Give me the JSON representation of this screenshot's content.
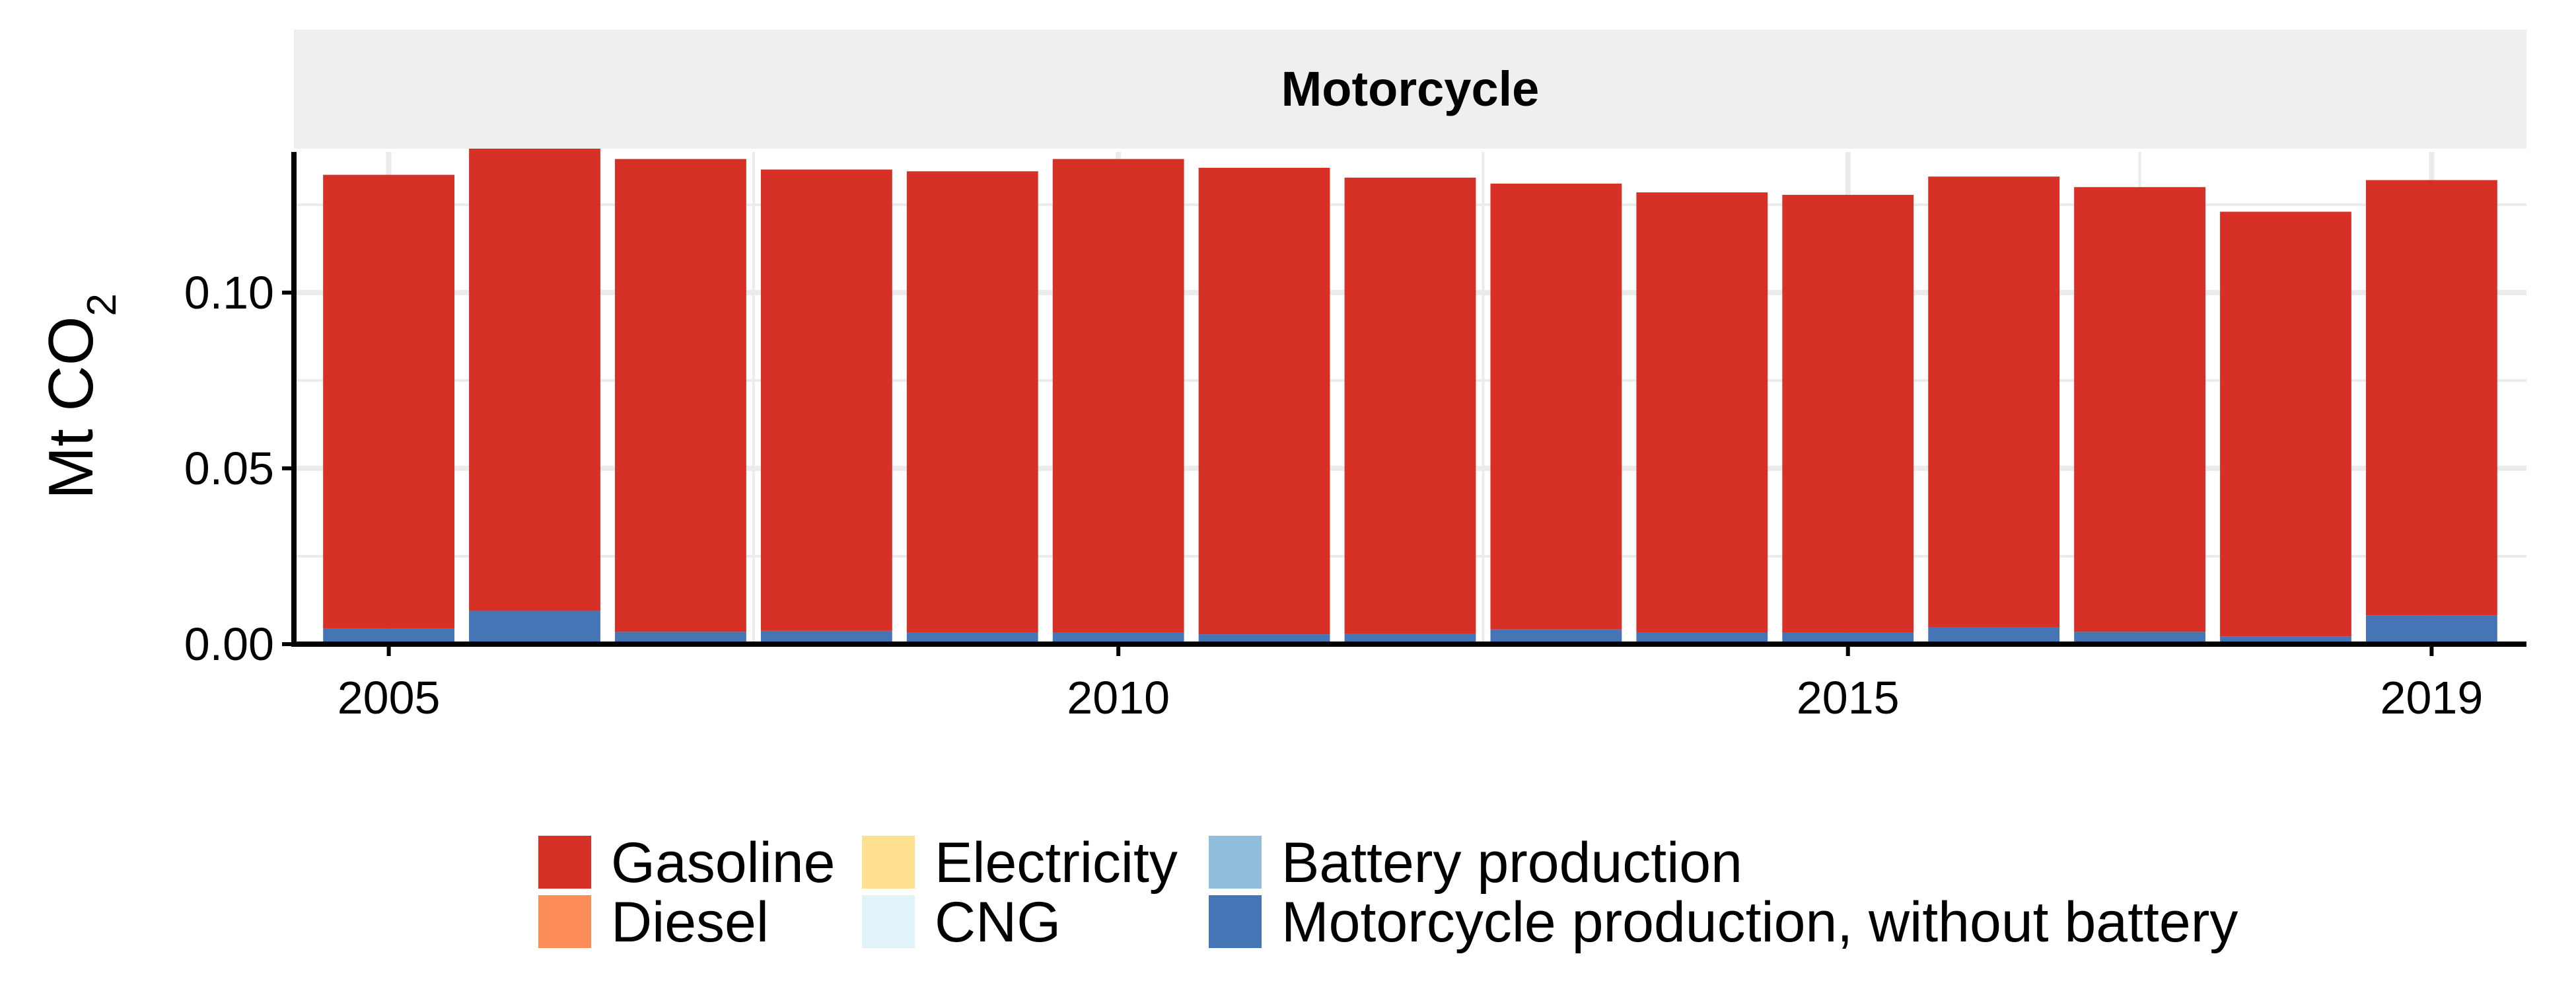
{
  "chart_data": {
    "type": "bar",
    "stacked": true,
    "facet": "Motorcycle",
    "ylabel": "Mt CO",
    "ylabel_subscript": "2",
    "ylim": [
      0,
      0.14
    ],
    "yticks": [
      "0.00",
      "0.05",
      "0.10"
    ],
    "ytick_values": [
      0,
      0.05,
      0.1
    ],
    "xticks": [
      "2005",
      "2010",
      "2015",
      "2019"
    ],
    "xtick_values": [
      2005,
      2010,
      2015,
      2019
    ],
    "x": [
      2005,
      2006,
      2007,
      2008,
      2009,
      2010,
      2011,
      2012,
      2013,
      2014,
      2015,
      2016,
      2017,
      2018,
      2019
    ],
    "series": [
      {
        "name": "Motorcycle production, without battery",
        "color": "#4575b4",
        "values": [
          0.0045,
          0.0095,
          0.0035,
          0.0038,
          0.0033,
          0.0033,
          0.0028,
          0.003,
          0.0042,
          0.0033,
          0.0033,
          0.0048,
          0.0035,
          0.0022,
          0.0082
        ]
      },
      {
        "name": "Battery production",
        "color": "#91bfdb",
        "values": [
          0,
          0,
          0,
          0,
          0,
          0,
          0,
          0,
          0,
          0,
          0,
          0,
          0,
          0,
          0
        ]
      },
      {
        "name": "Gasoline",
        "color": "#d73027",
        "values": [
          0.129,
          0.1315,
          0.1345,
          0.1312,
          0.1312,
          0.1347,
          0.1327,
          0.1297,
          0.1268,
          0.1252,
          0.1245,
          0.1282,
          0.1265,
          0.1208,
          0.1238
        ]
      },
      {
        "name": "Diesel",
        "color": "#fc8d59",
        "values": [
          0,
          0,
          0,
          0,
          0,
          0,
          0,
          0,
          0,
          0,
          0,
          0,
          0,
          0,
          0
        ]
      },
      {
        "name": "Electricity",
        "color": "#fee090",
        "values": [
          0,
          0,
          0,
          0,
          0,
          0,
          0,
          0,
          0,
          0,
          0,
          0,
          0,
          0,
          0
        ]
      },
      {
        "name": "CNG",
        "color": "#e0f3f8",
        "values": [
          0,
          0,
          0,
          0,
          0,
          0,
          0,
          0,
          0,
          0,
          0,
          0,
          0,
          0,
          0
        ]
      }
    ],
    "legend": {
      "placement": "bottom",
      "columns": [
        [
          "Gasoline",
          "Diesel"
        ],
        [
          "Electricity",
          "CNG"
        ],
        [
          "Battery production",
          "Motorcycle production, without battery"
        ]
      ]
    },
    "grid": true,
    "strip_color": "#efefef",
    "grid_color": "#ebebeb"
  }
}
